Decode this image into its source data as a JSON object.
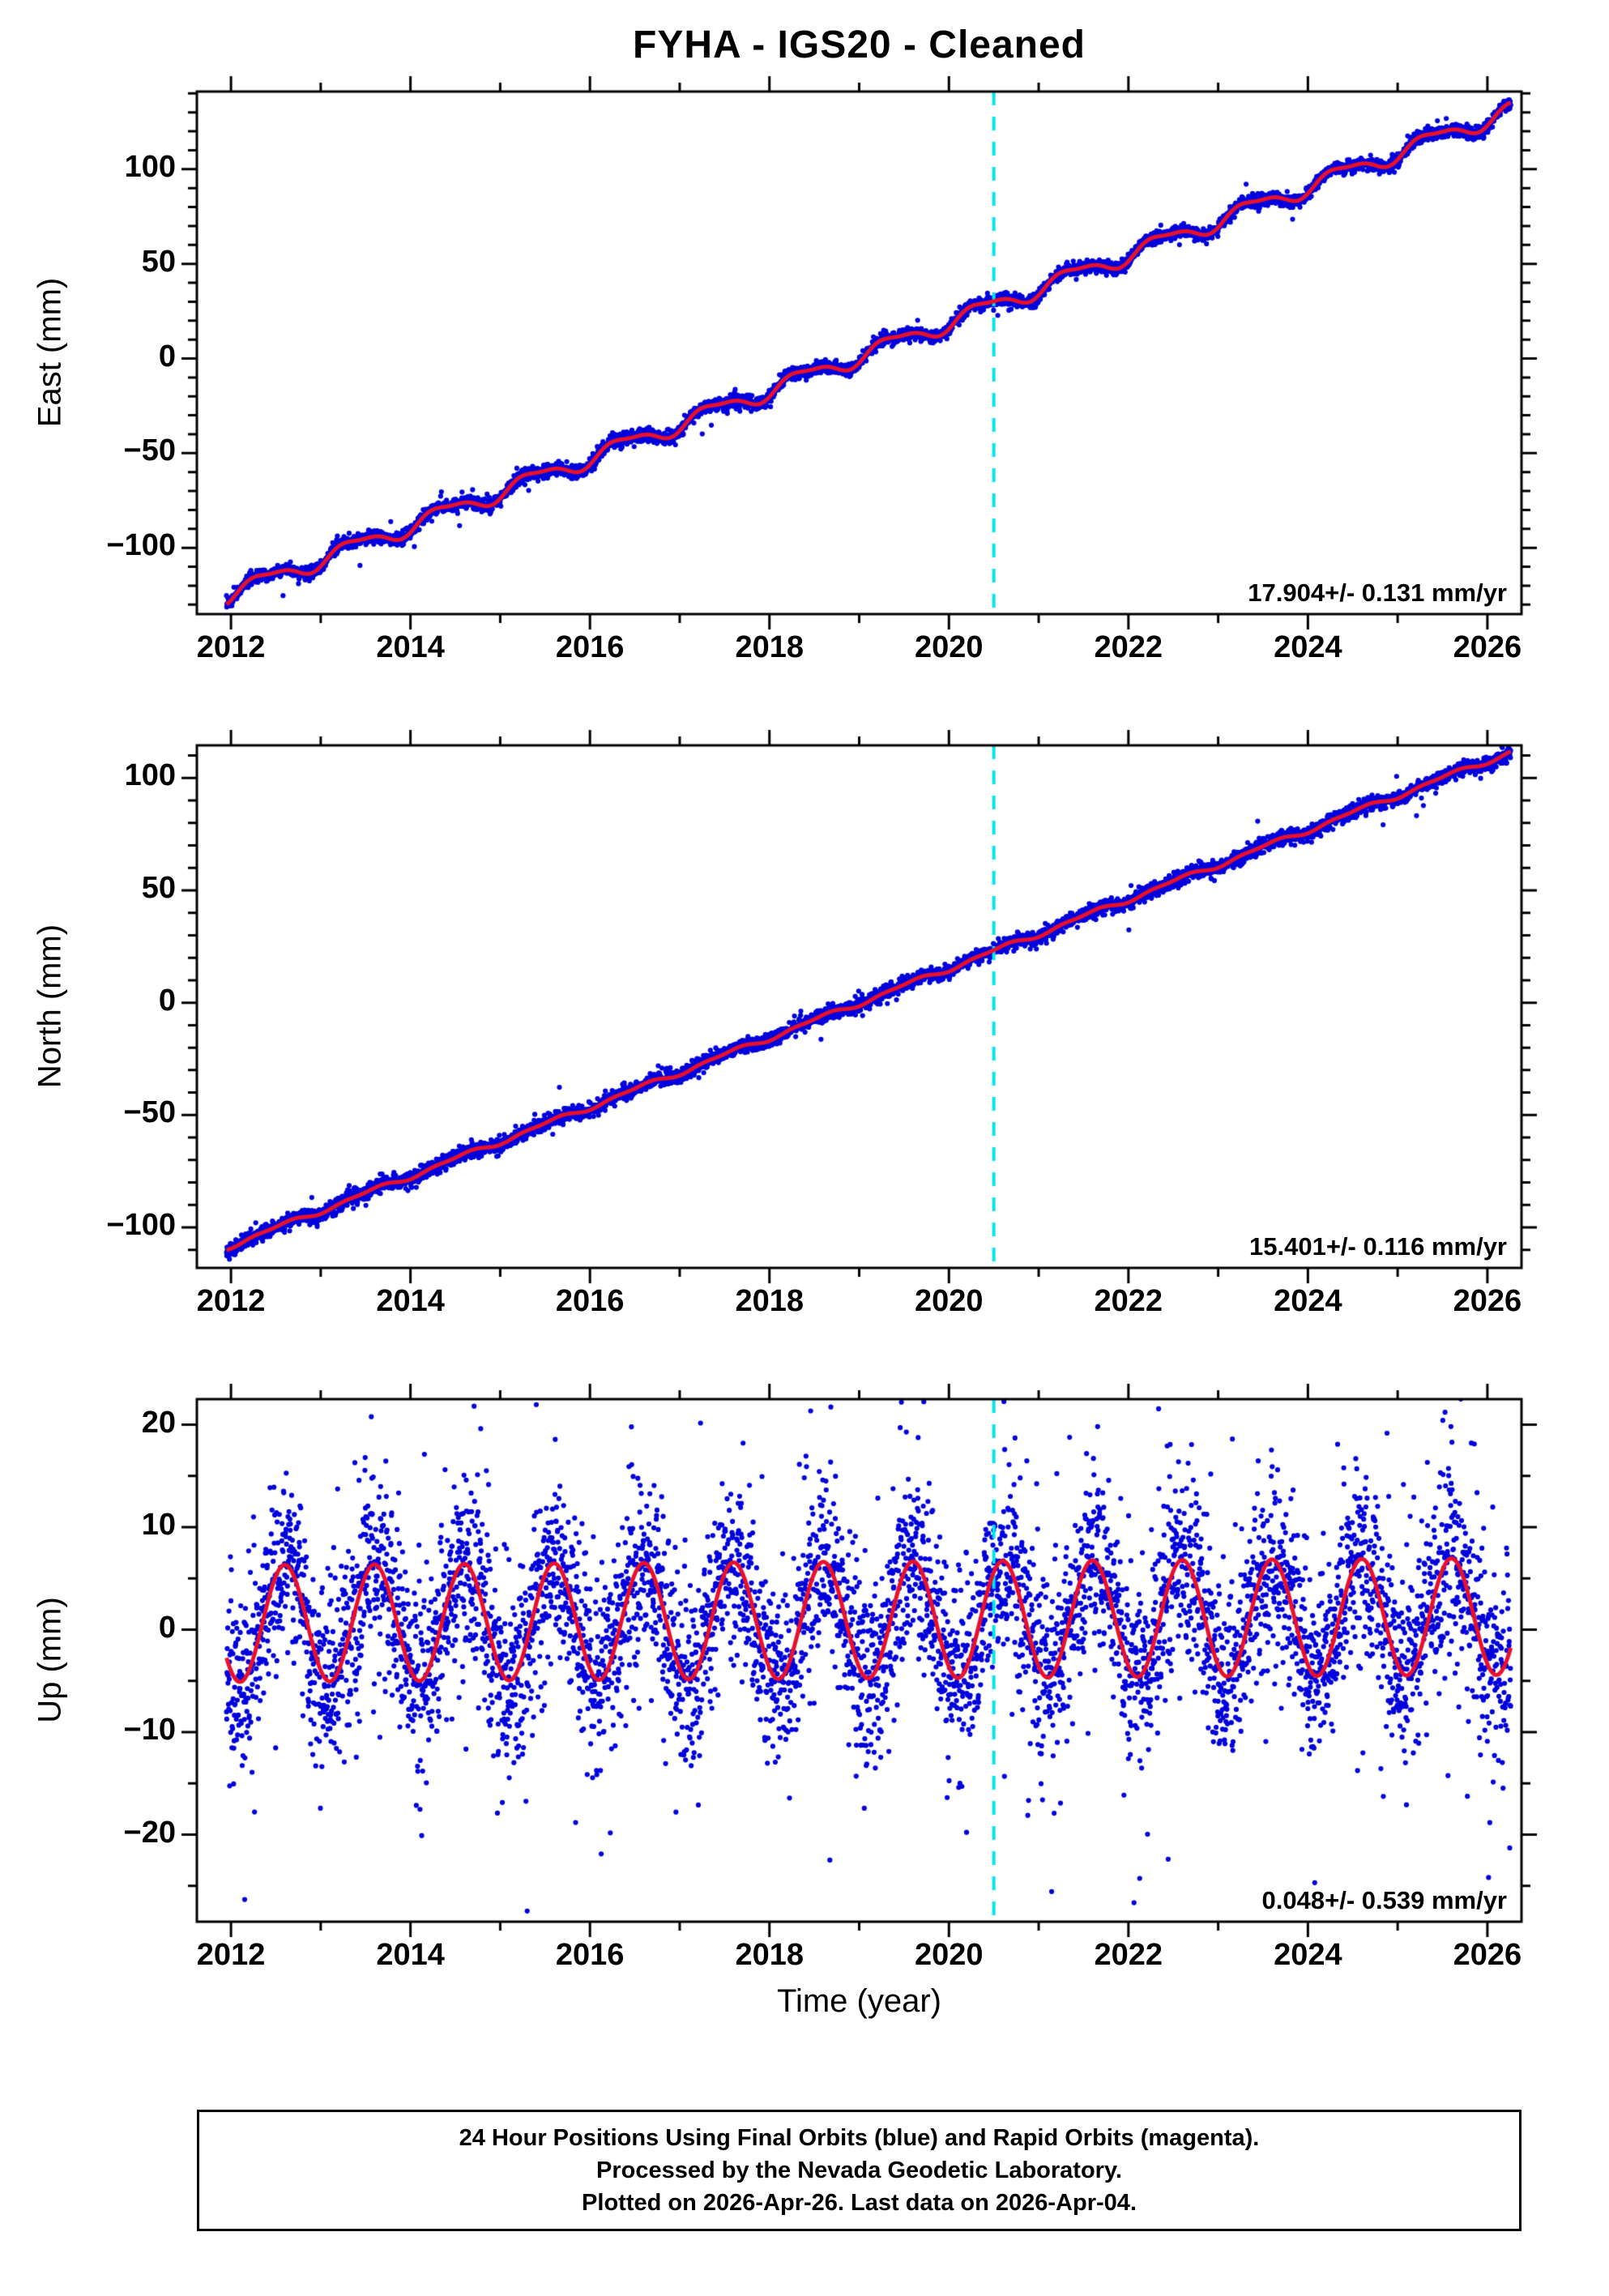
{
  "title": "FYHA  - IGS20 - Cleaned",
  "footer": {
    "lines": [
      "24 Hour Positions Using Final Orbits (blue) and Rapid Orbits (magenta).",
      "Processed by the Nevada Geodetic Laboratory.",
      "Plotted on 2026-Apr-26. Last data on 2026-Apr-04."
    ]
  },
  "colors": {
    "points": "#0000dd",
    "model": "#e8112d",
    "reference_line": "#00e6f0",
    "frame": "#000000"
  },
  "chart_data": [
    {
      "type": "scatter",
      "panel": "east",
      "ylabel": "East (mm)",
      "xlabel": "",
      "annotation": "17.904+/- 0.131 mm/yr",
      "xlim": [
        2011.62,
        2026.38
      ],
      "ylim": [
        -135,
        141
      ],
      "xticks": [
        2012,
        2014,
        2016,
        2018,
        2020,
        2022,
        2024,
        2026
      ],
      "yticks": [
        -100,
        -50,
        0,
        50,
        100
      ],
      "x_minor_step": 1,
      "y_minor_step": 10,
      "reference_line_x": 2020.5,
      "trend": {
        "value_at_2012_mm": -124,
        "rate_mm_per_yr": 17.904,
        "rate_uncertainty_mm_per_yr": 0.131,
        "seasonal_amplitude_mm": 4.2,
        "seasonal_phase_yr": 0.12,
        "semiannual_amplitude_mm": 1.4,
        "semiannual_phase_yr": 0.05
      },
      "scatter_model": {
        "sigma_mm": 1.7,
        "outlier_fraction": 0.01,
        "outlier_scale": 3
      },
      "data_span": {
        "start": 2011.95,
        "end": 2026.26,
        "points_per_year": 365
      }
    },
    {
      "type": "scatter",
      "panel": "north",
      "ylabel": "North (mm)",
      "xlabel": "",
      "annotation": "15.401+/- 0.116 mm/yr",
      "xlim": [
        2011.62,
        2026.38
      ],
      "ylim": [
        -118,
        114.5
      ],
      "xticks": [
        2012,
        2014,
        2016,
        2018,
        2020,
        2022,
        2024,
        2026
      ],
      "yticks": [
        -100,
        -50,
        0,
        50,
        100
      ],
      "x_minor_step": 1,
      "y_minor_step": 10,
      "reference_line_x": 2020.5,
      "trend": {
        "value_at_2012_mm": -108,
        "rate_mm_per_yr": 15.401,
        "rate_uncertainty_mm_per_yr": 0.116,
        "seasonal_amplitude_mm": 1.0,
        "seasonal_phase_yr": 0.3,
        "semiannual_amplitude_mm": 0.5,
        "semiannual_phase_yr": 0.1
      },
      "scatter_model": {
        "sigma_mm": 1.6,
        "outlier_fraction": 0.01,
        "outlier_scale": 3
      },
      "data_span": {
        "start": 2011.95,
        "end": 2026.26,
        "points_per_year": 365
      }
    },
    {
      "type": "scatter",
      "panel": "up",
      "ylabel": "Up (mm)",
      "xlabel": "Time (year)",
      "annotation": "0.048+/- 0.539 mm/yr",
      "xlim": [
        2011.62,
        2026.38
      ],
      "ylim": [
        -28.5,
        22.5
      ],
      "xticks": [
        2012,
        2014,
        2016,
        2018,
        2020,
        2022,
        2024,
        2026
      ],
      "yticks": [
        -20,
        -10,
        0,
        10,
        20
      ],
      "x_minor_step": 1,
      "y_minor_step": 5,
      "reference_line_x": 2020.5,
      "trend": {
        "value_at_2012_mm": 0.6,
        "rate_mm_per_yr": 0.048,
        "rate_uncertainty_mm_per_yr": 0.539,
        "seasonal_amplitude_mm": 5.7,
        "seasonal_phase_yr": 0.35,
        "semiannual_amplitude_mm": 0,
        "semiannual_phase_yr": 0
      },
      "scatter_model": {
        "sigma_mm": 4.3,
        "outlier_fraction": 0.1,
        "outlier_scale": 2
      },
      "data_span": {
        "start": 2011.95,
        "end": 2026.26,
        "points_per_year": 365
      }
    }
  ]
}
